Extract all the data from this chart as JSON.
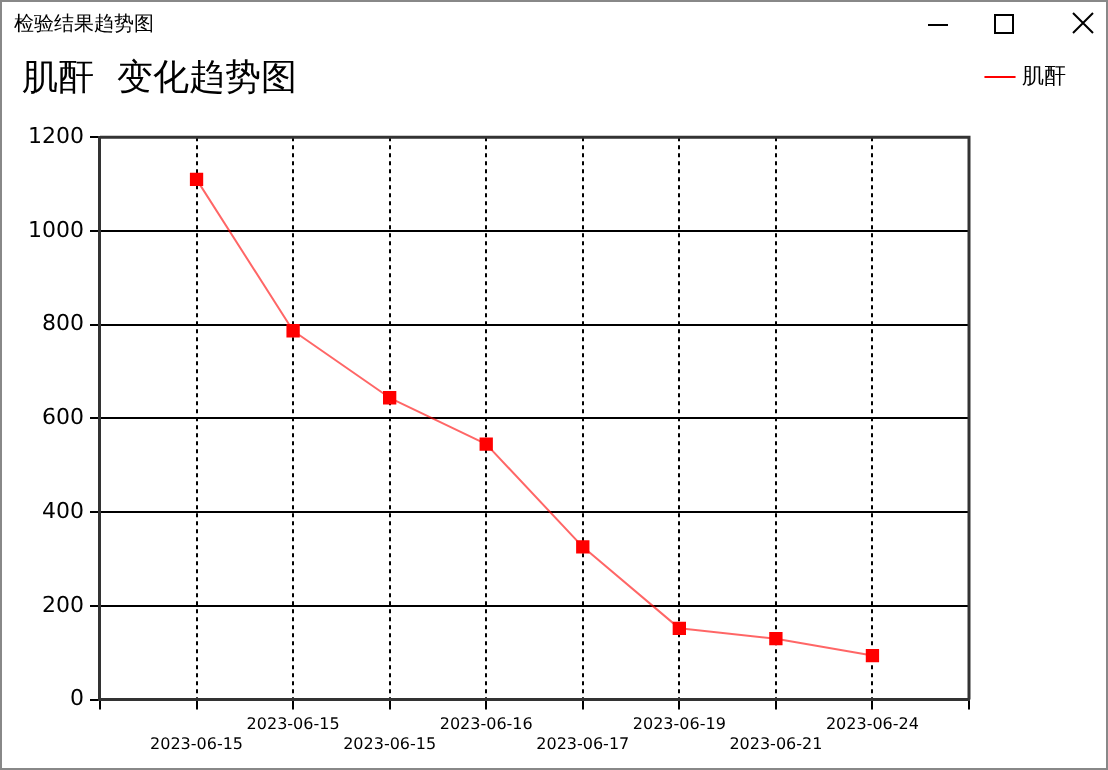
{
  "chart_data": {
    "type": "line",
    "title": "肌酐  变化趋势图",
    "annotations": [
      "检验结果趋势图"
    ],
    "categories": [
      "2023-06-15",
      "2023-06-15",
      "2023-06-15",
      "2023-06-16",
      "2023-06-17",
      "2023-06-19",
      "2023-06-21",
      "2023-06-24"
    ],
    "series": [
      {
        "name": "肌酐",
        "color": "#ff0000",
        "values": [
          1110,
          787,
          644,
          545,
          326,
          152,
          130,
          94
        ]
      }
    ],
    "ylim": [
      0,
      1200
    ],
    "yticks": [
      0,
      200,
      400,
      600,
      800,
      1000,
      1200
    ],
    "grid": true,
    "legend": "top right",
    "marker": "square",
    "line_style": "solid"
  }
}
